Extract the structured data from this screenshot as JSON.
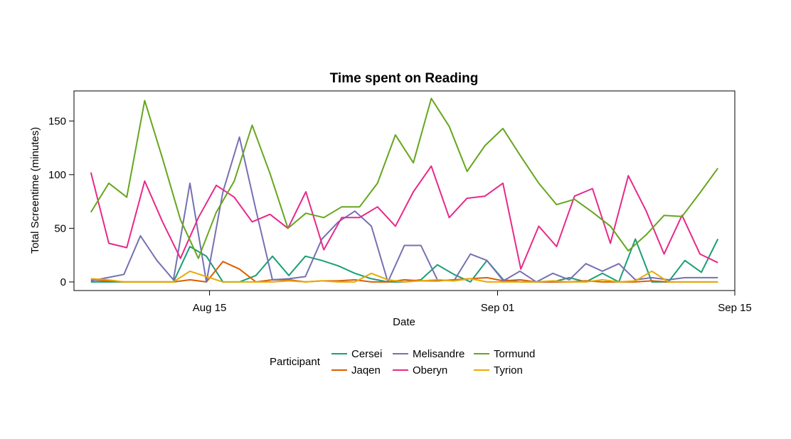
{
  "chart_data": {
    "type": "line",
    "title": "Time spent on Reading",
    "xlabel": "Date",
    "ylabel": "Total Screentime (minutes)",
    "x_start": "2024-08-08",
    "x_end": "2024-09-14",
    "xlim": [
      "2024-08-07",
      "2024-09-15"
    ],
    "ylim": [
      -8,
      178
    ],
    "x_ticks": [
      {
        "date": "2024-08-15",
        "label": "Aug 15"
      },
      {
        "date": "2024-09-01",
        "label": "Sep 01"
      },
      {
        "date": "2024-09-15",
        "label": "Sep 15"
      }
    ],
    "y_ticks": [
      0,
      50,
      100,
      150
    ],
    "legend": {
      "title": "Participant",
      "position": "bottom"
    },
    "series": [
      {
        "name": "Cersei",
        "color": "#1B9E77",
        "values": [
          0,
          0,
          0,
          0,
          0,
          0,
          33,
          24,
          0,
          0,
          6,
          24,
          6,
          24,
          20,
          15,
          8,
          3,
          0,
          0,
          2,
          16,
          7,
          0,
          20,
          2,
          0,
          0,
          0,
          4,
          0,
          8,
          0,
          40,
          0,
          0,
          20,
          9,
          40
        ]
      },
      {
        "name": "Jaqen",
        "color": "#D95F02",
        "values": [
          2,
          1,
          0,
          0,
          0,
          0,
          2,
          0,
          19,
          12,
          0,
          2,
          2,
          0,
          1,
          1,
          2,
          0,
          0,
          2,
          1,
          1,
          2,
          3,
          4,
          1,
          2,
          0,
          0,
          0,
          1,
          0,
          0,
          0,
          1,
          0,
          0,
          0,
          0
        ]
      },
      {
        "name": "Melisandre",
        "color": "#7570B3",
        "values": [
          1,
          4,
          7,
          43,
          20,
          2,
          92,
          0,
          84,
          135,
          67,
          2,
          3,
          5,
          40,
          56,
          66,
          52,
          0,
          34,
          34,
          2,
          1,
          26,
          20,
          1,
          10,
          0,
          8,
          2,
          17,
          10,
          17,
          2,
          4,
          2,
          4,
          4,
          4
        ]
      },
      {
        "name": "Oberyn",
        "color": "#E7298A",
        "values": [
          102,
          36,
          32,
          94,
          56,
          22,
          60,
          90,
          79,
          56,
          63,
          50,
          84,
          30,
          60,
          60,
          70,
          52,
          84,
          108,
          60,
          78,
          80,
          92,
          12,
          52,
          33,
          80,
          87,
          36,
          99,
          66,
          26,
          62,
          26,
          18
        ]
      },
      {
        "name": "Tormund",
        "color": "#66A61E",
        "values": [
          65,
          92,
          79,
          169,
          115,
          58,
          22,
          65,
          94,
          146,
          101,
          50,
          64,
          60,
          70,
          70,
          92,
          137,
          111,
          171,
          145,
          103,
          127,
          143,
          117,
          92,
          72,
          77,
          65,
          52,
          29,
          44,
          62,
          61,
          83,
          106
        ]
      },
      {
        "name": "Tyrion",
        "color": "#E6AB02",
        "values": [
          3,
          2,
          0,
          0,
          0,
          0,
          10,
          5,
          0,
          0,
          0,
          0,
          1,
          0,
          1,
          0,
          0,
          8,
          2,
          0,
          1,
          2,
          1,
          3,
          0,
          0,
          0,
          0,
          1,
          0,
          0,
          2,
          0,
          1,
          10,
          0,
          0,
          0,
          0
        ]
      }
    ]
  }
}
